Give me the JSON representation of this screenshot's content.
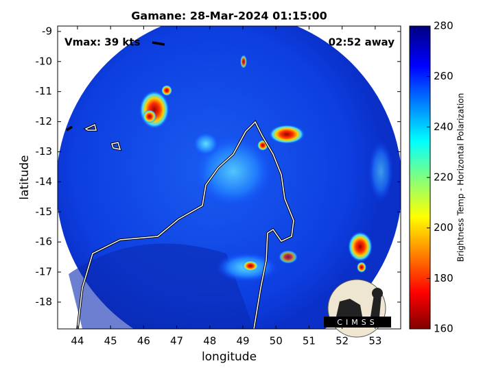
{
  "chart_data": {
    "type": "map",
    "title": "Gamane: 28-Mar-2024 01:15:00",
    "xlabel": "longitude",
    "ylabel": "latitude",
    "xlim": [
      43.4,
      53.77
    ],
    "xticks": [
      44,
      45,
      46,
      47,
      48,
      49,
      50,
      51,
      52,
      53
    ],
    "ylim": [
      -18.89,
      -8.82
    ],
    "yticks": [
      -9,
      -10,
      -11,
      -12,
      -13,
      -14,
      -15,
      -16,
      -17,
      -18
    ],
    "annotations": [
      "Vmax: 39 kts",
      "02:52 away"
    ],
    "colorbar": {
      "label": "Brightness Temp - Horizontal Polarization",
      "clim": [
        160,
        280
      ],
      "ticks": [
        160,
        180,
        200,
        220,
        240,
        260,
        280
      ]
    },
    "logo": "CIMSS"
  }
}
